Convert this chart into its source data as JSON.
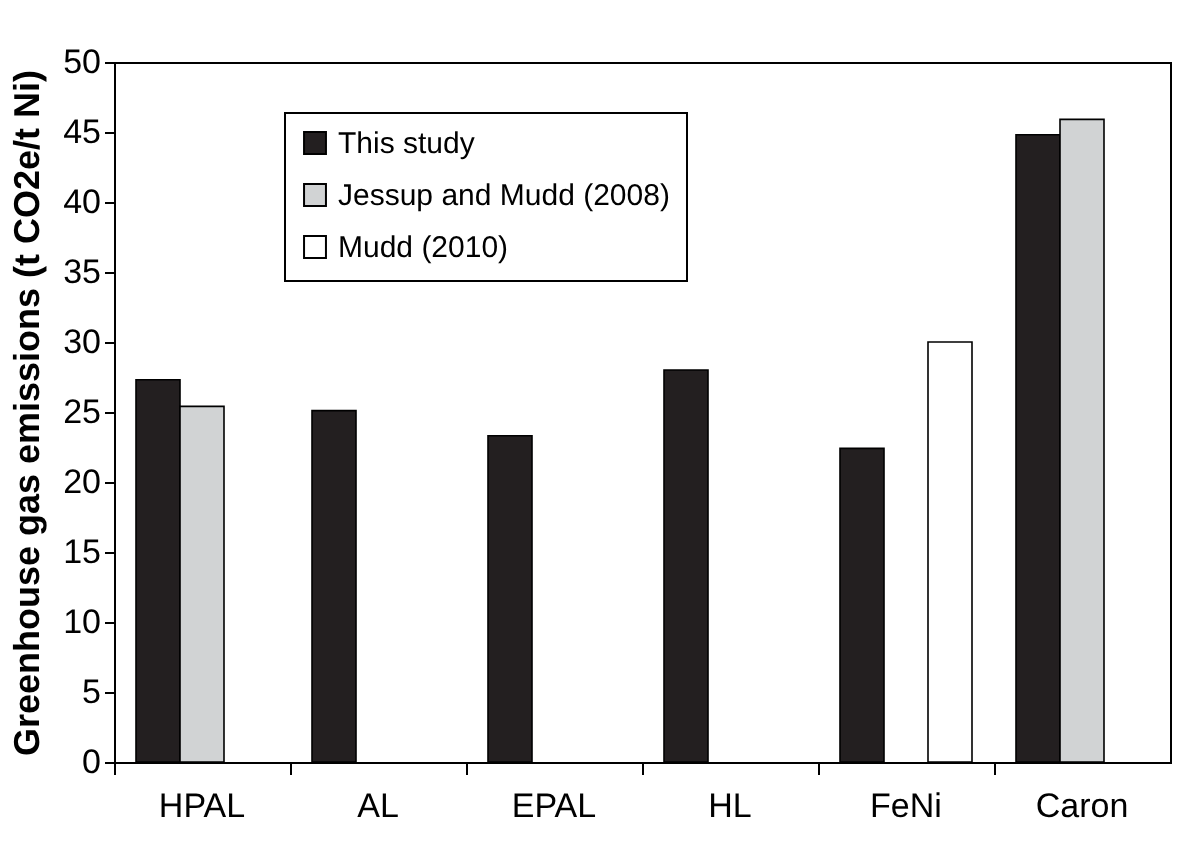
{
  "chart_data": {
    "type": "bar",
    "ylabel": "Greenhouse gas emissions (t CO2e/t Ni)",
    "categories": [
      "HPAL",
      "AL",
      "EPAL",
      "HL",
      "FeNi",
      "Caron"
    ],
    "series": [
      {
        "name": "This study",
        "color": "#231f20",
        "values": [
          27.3,
          25.1,
          23.3,
          28.0,
          22.4,
          44.8
        ]
      },
      {
        "name": "Jessup and Mudd (2008)",
        "color": "#d1d3d4",
        "values": [
          25.4,
          null,
          null,
          null,
          null,
          45.9
        ]
      },
      {
        "name": "Mudd (2010)",
        "color": "#ffffff",
        "values": [
          null,
          null,
          null,
          null,
          30.0,
          null
        ]
      }
    ],
    "ylim": [
      0,
      50
    ],
    "yticks": [
      0,
      5,
      10,
      15,
      20,
      25,
      30,
      35,
      40,
      45,
      50
    ],
    "grid": false,
    "legend": "top left"
  }
}
